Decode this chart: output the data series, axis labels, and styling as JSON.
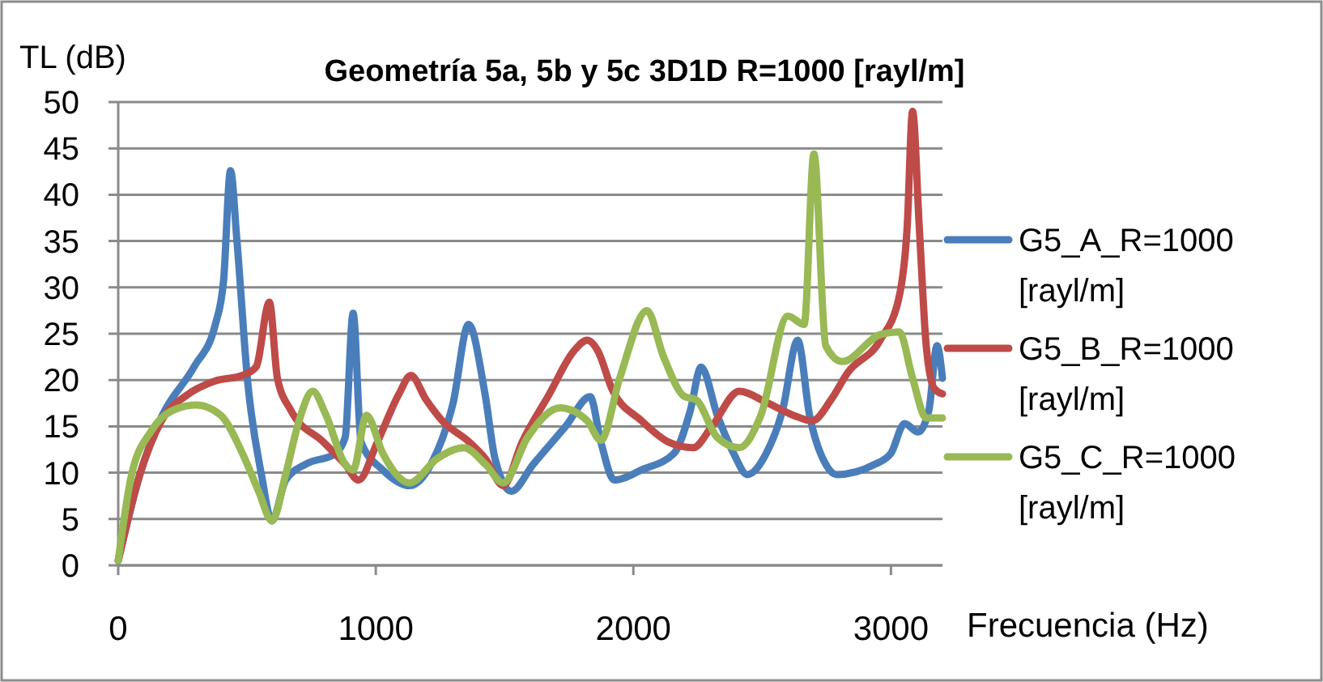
{
  "chart_data": {
    "type": "line",
    "title": "Geometría 5a, 5b y 5c 3D1D R=1000 [rayl/m]",
    "xlabel": "Frecuencia (Hz)",
    "ylabel": "TL (dB)",
    "xlim": [
      0,
      3200
    ],
    "xticks": [
      0,
      1000,
      2000,
      3000
    ],
    "ylim": [
      0,
      50
    ],
    "yticks": [
      0,
      5,
      10,
      15,
      20,
      25,
      30,
      35,
      40,
      45,
      50
    ],
    "grid": "y",
    "legend": "right",
    "line_style": "solid",
    "marker": "none",
    "series": [
      {
        "name": "G5_A_R=1000 [rayl/m]",
        "color": "#4a7ebb",
        "x": [
          0,
          84,
          168,
          294,
          377,
          409,
          436,
          461,
          503,
          556,
          597,
          650,
          734,
          839,
          881,
          912,
          943,
          1027,
          1132,
          1216,
          1300,
          1360,
          1424,
          1463,
          1526,
          1611,
          1737,
          1832,
          1874,
          1926,
          2032,
          2158,
          2221,
          2263,
          2326,
          2389,
          2442,
          2516,
          2579,
          2638,
          2684,
          2747,
          2789,
          2937,
          3000,
          3053,
          3105,
          3147,
          3179,
          3200
        ],
        "values": [
          0.5,
          9.8,
          16,
          21.4,
          26,
          30.7,
          42.6,
          35,
          19.7,
          9.8,
          4.8,
          9.2,
          11,
          12,
          13.8,
          27.2,
          13.3,
          10.3,
          8.6,
          11,
          17.5,
          26,
          18.5,
          11.5,
          8,
          10.9,
          15,
          18.2,
          13.3,
          9.2,
          10.3,
          12.1,
          16.7,
          21.4,
          16.2,
          12.1,
          9.8,
          12.1,
          16.7,
          24.3,
          16.2,
          10.9,
          9.8,
          10.9,
          12.1,
          15.3,
          14.4,
          16.7,
          23.7,
          20.2
        ]
      },
      {
        "name": "G5_B_R=1000 [rayl/m]",
        "color": "#be4b48",
        "x": [
          0,
          84,
          168,
          273,
          377,
          482,
          535,
          587,
          618,
          671,
          797,
          881,
          933,
          1006,
          1090,
          1136,
          1195,
          1258,
          1363,
          1426,
          1495,
          1568,
          1674,
          1768,
          1821,
          1863,
          1916,
          2032,
          2137,
          2232,
          2305,
          2411,
          2516,
          2621,
          2695,
          2768,
          2832,
          2958,
          3032,
          3063,
          3084,
          3110,
          3137,
          3168,
          3200
        ],
        "values": [
          0.5,
          9.8,
          15.6,
          18.5,
          19.9,
          20.5,
          21.4,
          28.4,
          20.2,
          16.7,
          13.3,
          10.9,
          9.2,
          13.3,
          18.5,
          20.5,
          17.9,
          15.6,
          13.3,
          11.5,
          8.6,
          13.3,
          18.5,
          23.1,
          24.3,
          23.1,
          19.1,
          15.6,
          13.3,
          12.7,
          15,
          18.8,
          17.6,
          16.2,
          15.6,
          17.9,
          20.8,
          24.3,
          29,
          36.5,
          49,
          36.5,
          23.7,
          19.1,
          18.5
        ]
      },
      {
        "name": "G5_C_R=1000 [rayl/m]",
        "color": "#98b954",
        "x": [
          0,
          52,
          126,
          210,
          304,
          398,
          482,
          545,
          597,
          650,
          702,
          755,
          807,
          881,
          912,
          964,
          1027,
          1132,
          1237,
          1342,
          1426,
          1495,
          1589,
          1716,
          1821,
          1874,
          1947,
          2053,
          2116,
          2200,
          2242,
          2326,
          2411,
          2495,
          2600,
          2663,
          2701,
          2747,
          2811,
          2958,
          3032,
          3084,
          3137,
          3200
        ],
        "values": [
          0.5,
          9.8,
          14.4,
          16.7,
          17.3,
          16.2,
          12.1,
          8,
          4.8,
          9.8,
          15.6,
          18.8,
          16.2,
          10.9,
          10.3,
          16.2,
          12.1,
          8.9,
          11.5,
          12.7,
          10.9,
          8.9,
          13.8,
          17,
          15.6,
          13.5,
          20.2,
          27.5,
          22.6,
          18.2,
          17.9,
          13.8,
          12.7,
          16.2,
          26.9,
          26,
          44.4,
          23.7,
          22,
          24.9,
          25.2,
          20.2,
          15.9,
          15.9
        ]
      }
    ]
  }
}
